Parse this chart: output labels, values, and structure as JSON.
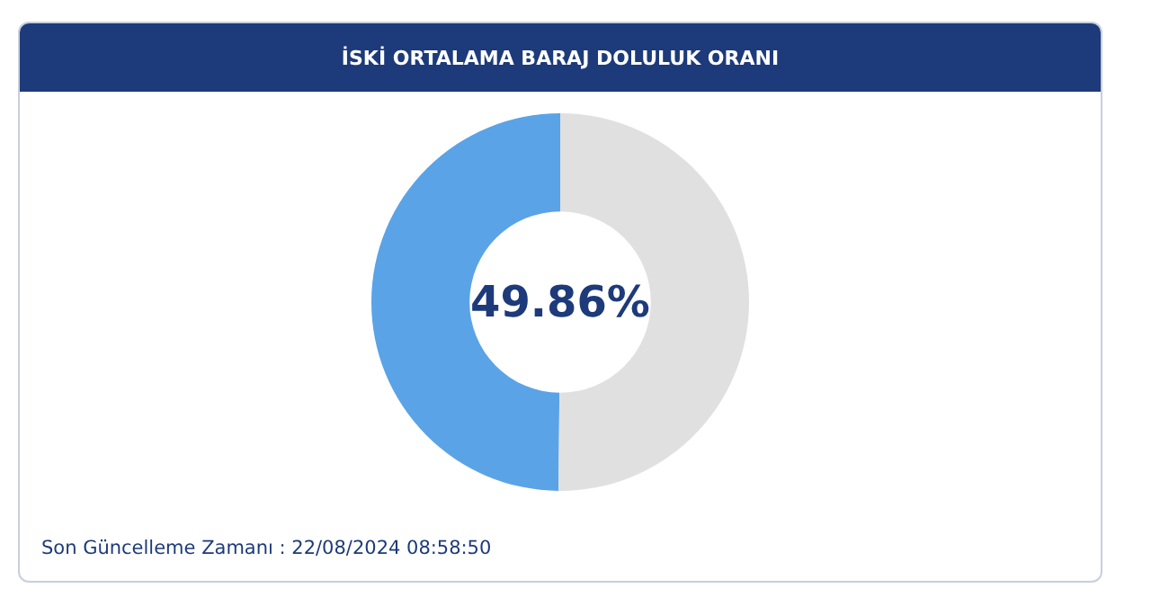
{
  "chart_data": {
    "type": "donut",
    "title": "İSKİ ORTALAMA BARAJ DOLULUK ORANI",
    "categories": [
      null,
      null
    ],
    "values": [
      49.86,
      50.14
    ],
    "colors": [
      "#5aa3e6",
      "#e0e0e0"
    ],
    "value_labels": [
      "49.86%",
      null
    ],
    "legend": false,
    "annotations": [
      "Son Güncelleme Zamanı : 22/08/2024 08:58:50"
    ]
  }
}
